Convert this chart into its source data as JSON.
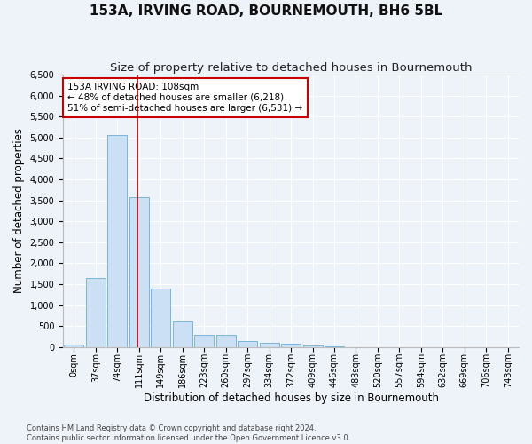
{
  "title": "153A, IRVING ROAD, BOURNEMOUTH, BH6 5BL",
  "subtitle": "Size of property relative to detached houses in Bournemouth",
  "xlabel": "Distribution of detached houses by size in Bournemouth",
  "ylabel": "Number of detached properties",
  "bar_labels": [
    "0sqm",
    "37sqm",
    "74sqm",
    "111sqm",
    "149sqm",
    "186sqm",
    "223sqm",
    "260sqm",
    "297sqm",
    "334sqm",
    "372sqm",
    "409sqm",
    "446sqm",
    "483sqm",
    "520sqm",
    "557sqm",
    "594sqm",
    "632sqm",
    "669sqm",
    "706sqm",
    "743sqm"
  ],
  "bar_values": [
    60,
    1650,
    5060,
    3580,
    1390,
    610,
    300,
    290,
    145,
    105,
    75,
    40,
    10,
    0,
    0,
    0,
    0,
    0,
    0,
    0,
    0
  ],
  "bar_color": "#cce0f5",
  "bar_edge_color": "#6aaed6",
  "vline_x": 2.92,
  "vline_color": "#aa0000",
  "ylim": [
    0,
    6500
  ],
  "yticks": [
    0,
    500,
    1000,
    1500,
    2000,
    2500,
    3000,
    3500,
    4000,
    4500,
    5000,
    5500,
    6000,
    6500
  ],
  "annotation_text": "153A IRVING ROAD: 108sqm\n← 48% of detached houses are smaller (6,218)\n51% of semi-detached houses are larger (6,531) →",
  "annotation_box_color": "#ffffff",
  "annotation_box_edge": "#cc0000",
  "footer_line1": "Contains HM Land Registry data © Crown copyright and database right 2024.",
  "footer_line2": "Contains public sector information licensed under the Open Government Licence v3.0.",
  "bg_color": "#eef2f9",
  "grid_color": "#ffffff",
  "title_fontsize": 11,
  "subtitle_fontsize": 9.5,
  "tick_fontsize": 7,
  "ylabel_fontsize": 8.5,
  "xlabel_fontsize": 8.5,
  "annotation_fontsize": 7.5,
  "footer_fontsize": 6
}
